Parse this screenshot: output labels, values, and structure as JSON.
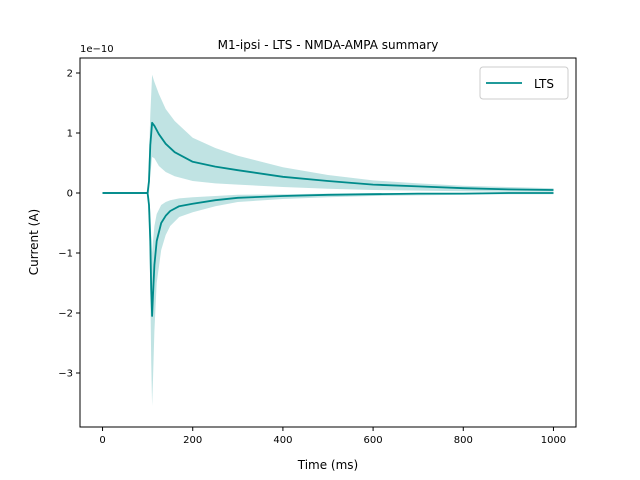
{
  "chart_data": {
    "type": "line",
    "title": "M1-ipsi - LTS - NMDA-AMPA summary",
    "xlabel": "Time (ms)",
    "ylabel": "Current (A)",
    "y_offset_label": "1e−10",
    "xlim": [
      -50,
      1050
    ],
    "ylim": [
      -3.9,
      2.25
    ],
    "xticks": [
      0,
      200,
      400,
      600,
      800,
      1000
    ],
    "xtick_labels": [
      "0",
      "200",
      "400",
      "600",
      "800",
      "1000"
    ],
    "yticks": [
      -3,
      -2,
      -1,
      0,
      1,
      2
    ],
    "ytick_labels": [
      "−3",
      "−2",
      "−1",
      "0",
      "1",
      "2"
    ],
    "legend": {
      "placement": "top-right",
      "entries": [
        "LTS"
      ]
    },
    "grid": false,
    "colors": {
      "line": "#008b8b",
      "band": "#b0dcdc"
    },
    "series": [
      {
        "name": "LTS",
        "x": [
          0,
          100,
          103,
          106,
          110,
          115,
          125,
          140,
          160,
          200,
          250,
          300,
          400,
          500,
          600,
          700,
          800,
          900,
          1000
        ],
        "y": [
          0,
          0,
          0.2,
          0.8,
          1.17,
          1.12,
          0.98,
          0.82,
          0.68,
          0.52,
          0.44,
          0.38,
          0.27,
          0.2,
          0.14,
          0.11,
          0.08,
          0.06,
          0.05
        ],
        "band_upper": [
          0,
          0,
          0.6,
          1.3,
          1.97,
          1.85,
          1.65,
          1.4,
          1.2,
          0.92,
          0.75,
          0.62,
          0.43,
          0.3,
          0.21,
          0.16,
          0.12,
          0.1,
          0.08
        ],
        "band_lower": [
          0,
          0,
          0,
          0.3,
          0.6,
          0.58,
          0.45,
          0.35,
          0.28,
          0.2,
          0.16,
          0.14,
          0.1,
          0.07,
          0.05,
          0.04,
          0.03,
          0.02,
          0.02
        ]
      },
      {
        "name": "",
        "x": [
          0,
          100,
          103,
          106,
          108,
          110,
          112,
          115,
          120,
          130,
          140,
          150,
          170,
          200,
          250,
          300,
          400,
          500,
          600,
          700,
          800,
          900,
          1000
        ],
        "y": [
          0,
          0,
          -0.2,
          -0.8,
          -1.6,
          -2.05,
          -1.7,
          -1.2,
          -0.8,
          -0.5,
          -0.38,
          -0.3,
          -0.22,
          -0.18,
          -0.12,
          -0.08,
          -0.05,
          -0.03,
          -0.02,
          -0.01,
          -0.01,
          0,
          0
        ],
        "band_upper": [
          0,
          0,
          -0.05,
          -0.3,
          -0.7,
          -1.0,
          -0.8,
          -0.55,
          -0.35,
          -0.2,
          -0.15,
          -0.12,
          -0.09,
          -0.07,
          -0.05,
          -0.03,
          -0.02,
          -0.01,
          0,
          0,
          0,
          0.01,
          0.01
        ],
        "band_lower": [
          0,
          0,
          -0.5,
          -1.6,
          -2.8,
          -3.55,
          -3.1,
          -2.3,
          -1.5,
          -0.95,
          -0.7,
          -0.55,
          -0.4,
          -0.32,
          -0.22,
          -0.15,
          -0.1,
          -0.07,
          -0.05,
          -0.04,
          -0.03,
          -0.02,
          -0.02
        ]
      }
    ]
  }
}
